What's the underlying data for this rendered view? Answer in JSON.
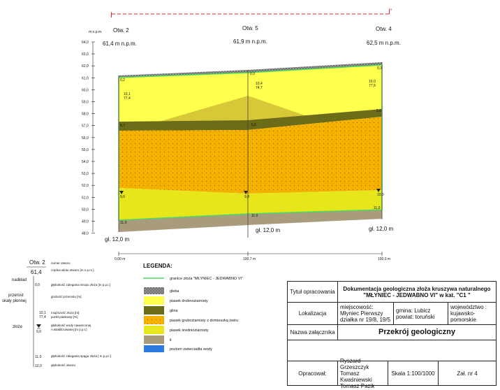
{
  "section": {
    "start_marker": "I",
    "end_marker": "I'",
    "depth_axis_title": "m n.p.m.",
    "depth_ticks": [
      "64,0",
      "63,0",
      "62,0",
      "61,0",
      "60,0",
      "59,0",
      "58,0",
      "57,0",
      "56,0",
      "55,0",
      "54,0",
      "53,0",
      "52,0",
      "51,0",
      "50,0",
      "49,0",
      "48,0"
    ],
    "distance_labels": [
      "0,00 m",
      "100,7 m",
      "100,0 m"
    ],
    "boreholes": [
      {
        "name": "Otw. 2",
        "elevation": "61,4 m n.p.m.",
        "depth_total": "gł. 12,0 m",
        "top_label": "0,2",
        "grain_depth": "10,1",
        "grain_pct": "77,4",
        "gravel_top": "6,7",
        "water": "9,0",
        "bottom": "11,0"
      },
      {
        "name": "Otw. 5",
        "elevation": "61,9 m n.p.m.",
        "depth_total": "gł. 12,0 m",
        "top_label": "0,3",
        "grain_depth": "10,4",
        "grain_pct": "74,7",
        "gravel_top": "5,6",
        "water": "9,8",
        "bottom": "11,0"
      },
      {
        "name": "Otw. 4",
        "elevation": "62,5 m n.p.m.",
        "depth_total": "gł. 12,0 m",
        "top_label": "0,3",
        "grain_depth": "10,0",
        "grain_pct": "77,9",
        "gravel_top": "5,0",
        "water": "10,0",
        "bottom": "11,0"
      }
    ]
  },
  "key": {
    "borehole_name": "Otw. 2",
    "elevation": "61,4",
    "labels": {
      "numer": "numer otworu",
      "rzedna": "rzędna wlotu otworu [m n.p.m.]",
      "nadklad": "nadkład",
      "glebokosc_stropu": "głębokość zalegania stropu złoża [m p.p.t.]",
      "przerost": "przerost\nskały płonnej",
      "grubosc": "grubość przerostu [m]",
      "miazszosc": "miąższość złoża [m]\npunkt piaskowy [%]",
      "zloze": "złoże",
      "woda": "głębokość wody nawierconej\ni ustabilizowanej [m p.p.t.]",
      "spag": "głębokość zalegania spągu złoża [ m p.p.t.]",
      "glebokosc_otworu": "głębokość otworu"
    },
    "values": {
      "v00": "0,0",
      "v101": "10,1",
      "v774": "77,4",
      "v90": "9,0",
      "v110": "11,0",
      "v120": "12,0"
    }
  },
  "legend": {
    "title": "LEGENDA:",
    "boundary": "granice złoża \"MŁYNIEC - JEDWABNO VI\"",
    "items": [
      "gleba",
      "piasek drobnoziarnisty",
      "glina",
      "piasek gruboziarnisty z domieszką żwiru",
      "piasek średnioziarnisty",
      "ił",
      "poziom zwierciadła wody"
    ],
    "colors": {
      "boundary": "#4cd964",
      "gleba": "#888888",
      "fine": "#ffff4d",
      "clay": "#6b6b18",
      "gravel": "#f5b300",
      "medium": "#e6e61a",
      "il": "#a89c7c",
      "water": "#2b7be0"
    }
  },
  "table": {
    "title_label": "Tytuł opracowania",
    "title_value": "Dokumentacja geologiczna złoża kruszywa naturalnego\n\"MŁYNIEC - JEDWABNO VI\" w kat. \"C1 \"",
    "location_label": "Lokalizacja",
    "location_place": "miejscowość:\nMłyniec Pierwszy\ndziałka nr 19/8, 19/5",
    "location_commune": "gmina: Lubicz\npowiat: toruński",
    "location_voivodeship": "województwo :\nkujawsko-\npomorskie",
    "attachment_label": "Nazwa załącznika",
    "attachment_value": "Przekrój geologiczny",
    "author_label": "Opracował:",
    "authors": "Ryszard Grzeszczyk\nTomasz Kwaśniewski\nTomasz Pazik",
    "scale": "Skala 1:100/1000",
    "attachment_no": "Zał. nr 4"
  }
}
